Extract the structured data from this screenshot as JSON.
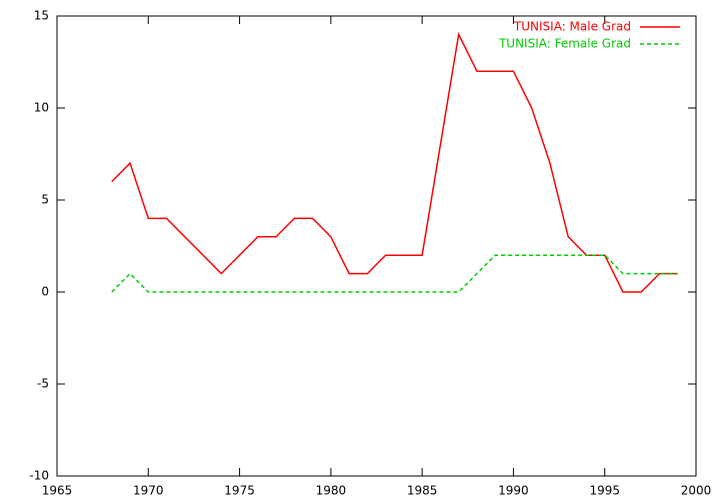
{
  "chart_data": {
    "type": "line",
    "x": [
      1968,
      1969,
      1970,
      1971,
      1972,
      1973,
      1974,
      1975,
      1976,
      1977,
      1978,
      1979,
      1980,
      1981,
      1982,
      1983,
      1984,
      1985,
      1986,
      1987,
      1988,
      1989,
      1990,
      1991,
      1992,
      1993,
      1994,
      1995,
      1996,
      1997,
      1998,
      1999
    ],
    "series": [
      {
        "name": "TUNISIA: Male Grad",
        "color": "#ff0000",
        "dash": false,
        "values": [
          6,
          7,
          4,
          4,
          3,
          2,
          1,
          2,
          3,
          3,
          4,
          4,
          3,
          1,
          1,
          2,
          2,
          2,
          8,
          14,
          12,
          12,
          12,
          10,
          7,
          3,
          2,
          2,
          0,
          0,
          1,
          1
        ]
      },
      {
        "name": "TUNISIA: Female Grad",
        "color": "#00cc00",
        "dash": true,
        "values": [
          0,
          1,
          0,
          0,
          0,
          0,
          0,
          0,
          0,
          0,
          0,
          0,
          0,
          0,
          0,
          0,
          0,
          0,
          0,
          0,
          1,
          2,
          2,
          2,
          2,
          2,
          2,
          2,
          1,
          1,
          1,
          1
        ]
      }
    ],
    "xlim": [
      1965,
      2000
    ],
    "xticks": [
      1965,
      1970,
      1975,
      1980,
      1985,
      1990,
      1995,
      2000
    ],
    "ylim": [
      -10,
      15
    ],
    "yticks": [
      -10,
      -5,
      0,
      5,
      10,
      15
    ],
    "legend": "top-right"
  }
}
